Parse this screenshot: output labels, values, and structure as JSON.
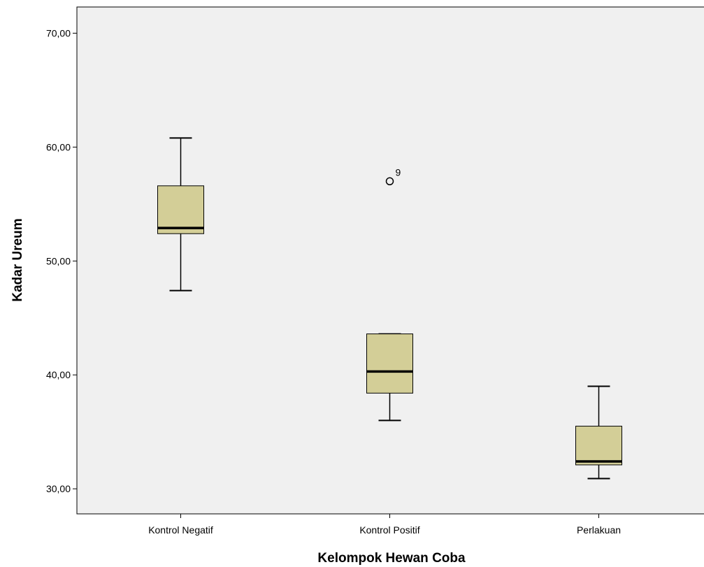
{
  "chart_data": {
    "type": "boxplot",
    "xlabel": "Kelompok Hewan Coba",
    "ylabel": "Kadar Ureum",
    "ylim": [
      27.8,
      72.3
    ],
    "yticks": [
      30,
      40,
      50,
      60,
      70
    ],
    "ytick_labels": [
      "30,00",
      "40,00",
      "50,00",
      "60,00",
      "70,00"
    ],
    "grid": false,
    "colors": {
      "plot_background": "#f0f0f0",
      "box_fill": "#d3ce97",
      "stroke": "#000000"
    },
    "categories": [
      "Kontrol Negatif",
      "Kontrol Positif",
      "Perlakuan"
    ],
    "boxes": [
      {
        "category": "Kontrol Negatif",
        "whisker_low": 47.4,
        "q1": 52.4,
        "median": 52.9,
        "q3": 56.6,
        "whisker_high": 60.8,
        "outliers": []
      },
      {
        "category": "Kontrol Positif",
        "whisker_low": 36.0,
        "q1": 38.4,
        "median": 40.3,
        "q3": 43.6,
        "whisker_high": 43.6,
        "outliers": [
          {
            "value": 57.0,
            "label": "9"
          }
        ]
      },
      {
        "category": "Perlakuan",
        "whisker_low": 30.9,
        "q1": 32.1,
        "median": 32.4,
        "q3": 35.5,
        "whisker_high": 39.0,
        "outliers": []
      }
    ]
  }
}
